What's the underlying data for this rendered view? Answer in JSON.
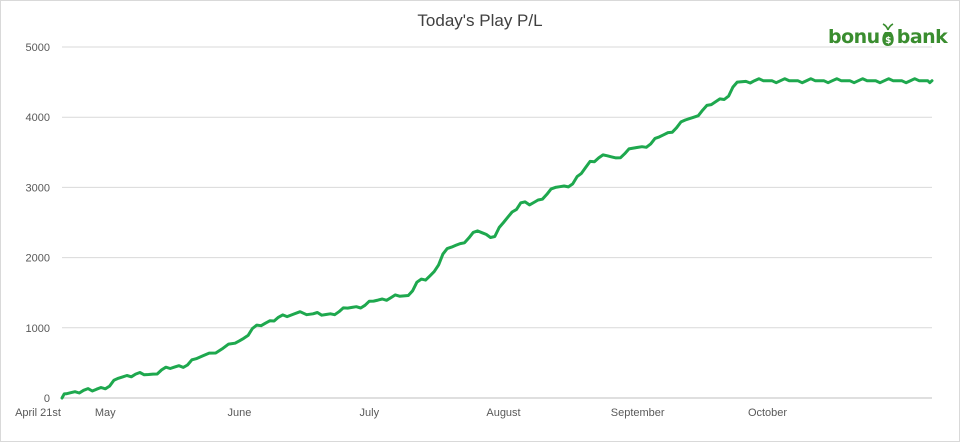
{
  "brand": {
    "name": "bonusbank",
    "prefix": "bonu",
    "suffix": "bank"
  },
  "colors": {
    "line": "#1ea84e",
    "grid": "#d9d9d9",
    "brand_green": "#3a8d2f"
  },
  "chart_data": {
    "type": "line",
    "title": "Today's Play P/L",
    "xlabel": "",
    "ylabel": "",
    "x_tick_labels": [
      "April 21st",
      "May",
      "June",
      "July",
      "August",
      "September",
      "October"
    ],
    "x_tick_dates": [
      "04-21",
      "05-01",
      "06-01",
      "07-01",
      "08-01",
      "09-01",
      "10-01"
    ],
    "y_ticks": [
      0,
      1000,
      2000,
      3000,
      4000,
      5000
    ],
    "ylim": [
      0,
      5000
    ],
    "xlim": [
      "04-21",
      "11-08"
    ],
    "grid": true,
    "legend": "none",
    "series": [
      {
        "x": [
          "04-21",
          "04-22",
          "04-24",
          "04-26",
          "04-28",
          "04-30",
          "05-02",
          "05-04",
          "05-06",
          "05-08",
          "05-10",
          "05-12",
          "05-14",
          "05-16",
          "05-18",
          "05-20",
          "05-22",
          "05-25",
          "05-28",
          "05-31",
          "06-02",
          "06-04",
          "06-06",
          "06-08",
          "06-10",
          "06-12",
          "06-15",
          "06-18",
          "06-20",
          "06-22",
          "06-24",
          "06-26",
          "06-28",
          "06-30",
          "07-02",
          "07-04",
          "07-06",
          "07-08",
          "07-10",
          "07-12",
          "07-14",
          "07-16",
          "07-18",
          "07-20",
          "07-22",
          "07-24",
          "07-26",
          "07-28",
          "07-30",
          "08-01",
          "08-03",
          "08-05",
          "08-07",
          "08-09",
          "08-11",
          "08-13",
          "08-15",
          "08-17",
          "08-19",
          "08-21",
          "08-23",
          "08-25",
          "08-27",
          "08-29",
          "08-31",
          "09-02",
          "09-04",
          "09-06",
          "09-08",
          "09-10",
          "09-12",
          "09-14",
          "09-16",
          "09-18",
          "09-20",
          "09-22",
          "09-24",
          "09-26",
          "09-28",
          "09-30",
          "10-02",
          "10-04",
          "10-06",
          "10-08",
          "10-10",
          "10-12",
          "10-14",
          "10-16",
          "10-18",
          "10-20",
          "10-22",
          "10-24",
          "10-26",
          "10-28",
          "10-30",
          "11-01",
          "11-03",
          "11-05",
          "11-07",
          "11-08"
        ],
        "y": [
          0,
          60,
          90,
          110,
          100,
          150,
          170,
          280,
          320,
          340,
          330,
          340,
          400,
          420,
          460,
          470,
          560,
          640,
          700,
          780,
          850,
          990,
          1030,
          1100,
          1150,
          1160,
          1230,
          1200,
          1180,
          1200,
          1230,
          1280,
          1300,
          1320,
          1380,
          1410,
          1430,
          1450,
          1460,
          1650,
          1680,
          1800,
          2050,
          2150,
          2200,
          2280,
          2380,
          2330,
          2300,
          2500,
          2650,
          2780,
          2750,
          2820,
          2900,
          3000,
          3020,
          3050,
          3200,
          3370,
          3420,
          3450,
          3420,
          3480,
          3560,
          3580,
          3620,
          3720,
          3780,
          3850,
          3960,
          4000,
          4100,
          4180,
          4260,
          4300,
          4500,
          4510,
          4520,
          4520,
          4520,
          4520,
          4520,
          4520,
          4520,
          4520,
          4520,
          4520,
          4520,
          4520,
          4520,
          4520,
          4520,
          4520,
          4520,
          4520,
          4520,
          4520,
          4520,
          4520
        ]
      }
    ]
  }
}
